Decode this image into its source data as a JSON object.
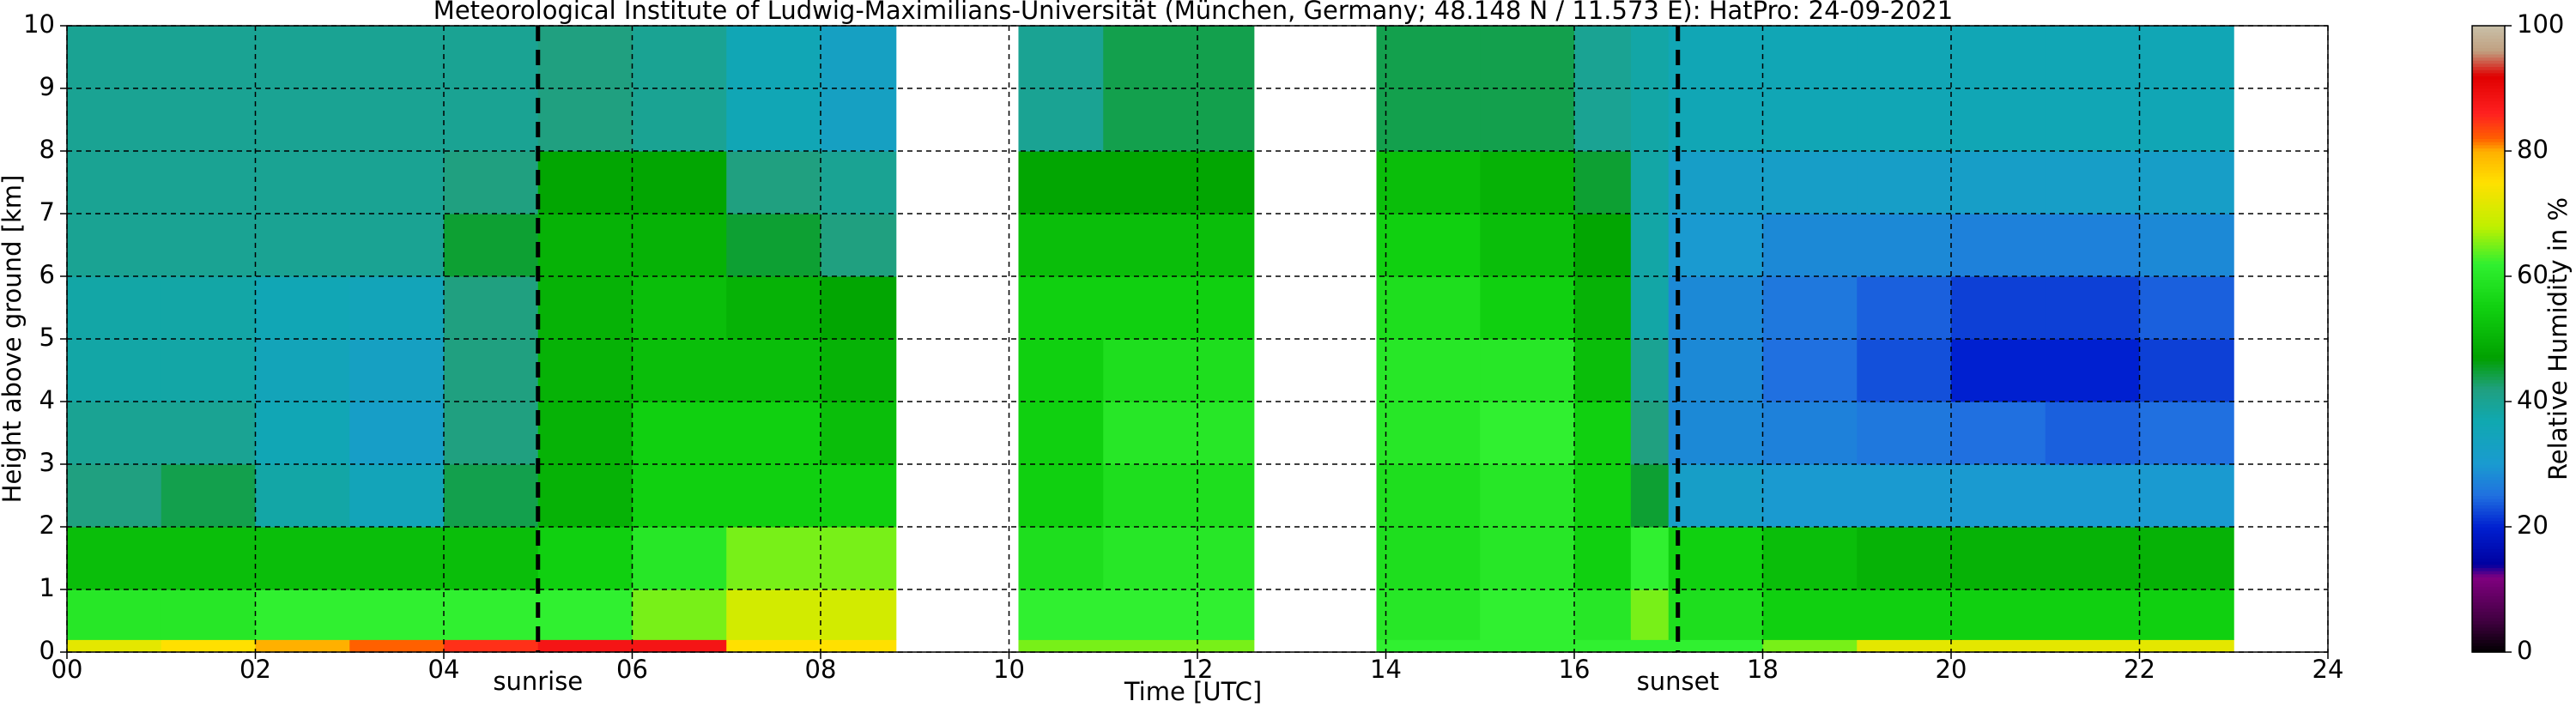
{
  "chart_data": {
    "type": "heatmap",
    "title": "Meteorological Institute of Ludwig-Maximilians-Universität (München, Germany; 48.148 N / 11.573 E):    HatPro: 24-09-2021",
    "x_label": "Time [UTC]",
    "y_label": "Height above ground [km]",
    "colorbar_label": "Relative Humidity in %",
    "x_edges": [
      0,
      1,
      2,
      3,
      4,
      5,
      6,
      7,
      8,
      8.8,
      10.1,
      11,
      12,
      12.6,
      13.9,
      15,
      16,
      16.6,
      17,
      18,
      19,
      20,
      21,
      22,
      23
    ],
    "y_edges": [
      0,
      0.2,
      1,
      2,
      3,
      4,
      5,
      6,
      7,
      8,
      10
    ],
    "z": [
      [
        72,
        75,
        80,
        82,
        85,
        88,
        88,
        75,
        75,
        null,
        65,
        65,
        65,
        null,
        62,
        62,
        62,
        62,
        62,
        65,
        72,
        72,
        72,
        72
      ],
      [
        60,
        60,
        62,
        62,
        62,
        62,
        65,
        70,
        70,
        null,
        62,
        62,
        62,
        null,
        60,
        62,
        60,
        65,
        58,
        55,
        55,
        55,
        55,
        55
      ],
      [
        52,
        52,
        52,
        52,
        52,
        55,
        60,
        65,
        65,
        null,
        58,
        60,
        60,
        null,
        58,
        60,
        55,
        62,
        55,
        52,
        50,
        50,
        50,
        50
      ],
      [
        42,
        44,
        38,
        35,
        44,
        50,
        55,
        55,
        55,
        null,
        55,
        58,
        58,
        null,
        58,
        60,
        55,
        45,
        32,
        30,
        30,
        30,
        30,
        30
      ],
      [
        40,
        40,
        36,
        32,
        42,
        50,
        55,
        55,
        52,
        null,
        55,
        60,
        60,
        null,
        60,
        62,
        55,
        42,
        28,
        27,
        26,
        25,
        24,
        25
      ],
      [
        38,
        38,
        35,
        33,
        42,
        50,
        52,
        52,
        50,
        null,
        55,
        58,
        58,
        null,
        60,
        60,
        52,
        40,
        28,
        25,
        23,
        20,
        20,
        22
      ],
      [
        38,
        38,
        36,
        35,
        42,
        50,
        52,
        50,
        48,
        null,
        55,
        55,
        55,
        null,
        58,
        55,
        50,
        38,
        28,
        26,
        24,
        22,
        22,
        24
      ],
      [
        40,
        40,
        40,
        40,
        45,
        50,
        50,
        45,
        42,
        null,
        52,
        52,
        52,
        null,
        55,
        52,
        48,
        38,
        30,
        28,
        28,
        27,
        27,
        28
      ],
      [
        40,
        40,
        40,
        40,
        42,
        48,
        48,
        42,
        40,
        null,
        48,
        48,
        48,
        null,
        52,
        50,
        45,
        38,
        32,
        32,
        32,
        32,
        32,
        32
      ],
      [
        40,
        40,
        40,
        40,
        40,
        42,
        40,
        36,
        33,
        null,
        40,
        44,
        44,
        null,
        44,
        44,
        40,
        38,
        36,
        36,
        36,
        36,
        36,
        36
      ]
    ],
    "xlim": [
      0,
      24
    ],
    "ylim": [
      0,
      10
    ],
    "xticks": [
      {
        "value": 0,
        "label": "00"
      },
      {
        "value": 2,
        "label": "02"
      },
      {
        "value": 4,
        "label": "04"
      },
      {
        "value": 6,
        "label": "06"
      },
      {
        "value": 8,
        "label": "08"
      },
      10,
      12,
      14,
      16,
      18,
      20,
      22,
      24
    ],
    "yticks": [
      0,
      1,
      2,
      3,
      4,
      5,
      6,
      7,
      8,
      9,
      10
    ],
    "grid": true,
    "clim": [
      0,
      100
    ],
    "cticks": [
      0,
      20,
      40,
      60,
      80,
      100
    ],
    "colorscale": [
      [
        0,
        "#000000"
      ],
      [
        5,
        "#400040"
      ],
      [
        12,
        "#800080"
      ],
      [
        14,
        "#0000a0"
      ],
      [
        20,
        "#0020d0"
      ],
      [
        25,
        "#2070e0"
      ],
      [
        30,
        "#1a9ad0"
      ],
      [
        37,
        "#10a8b0"
      ],
      [
        42,
        "#20a080"
      ],
      [
        47,
        "#00a000"
      ],
      [
        55,
        "#10d010"
      ],
      [
        62,
        "#30f030"
      ],
      [
        68,
        "#c0f000"
      ],
      [
        75,
        "#ffe000"
      ],
      [
        80,
        "#ffb000"
      ],
      [
        82,
        "#ff6000"
      ],
      [
        86,
        "#ff2020"
      ],
      [
        92,
        "#e00000"
      ],
      [
        96,
        "#c0a080"
      ],
      [
        100,
        "#c8c0a8"
      ]
    ],
    "annotations": [
      {
        "x": 5.0,
        "label": "sunrise"
      },
      {
        "x": 17.1,
        "label": "sunset"
      }
    ]
  }
}
